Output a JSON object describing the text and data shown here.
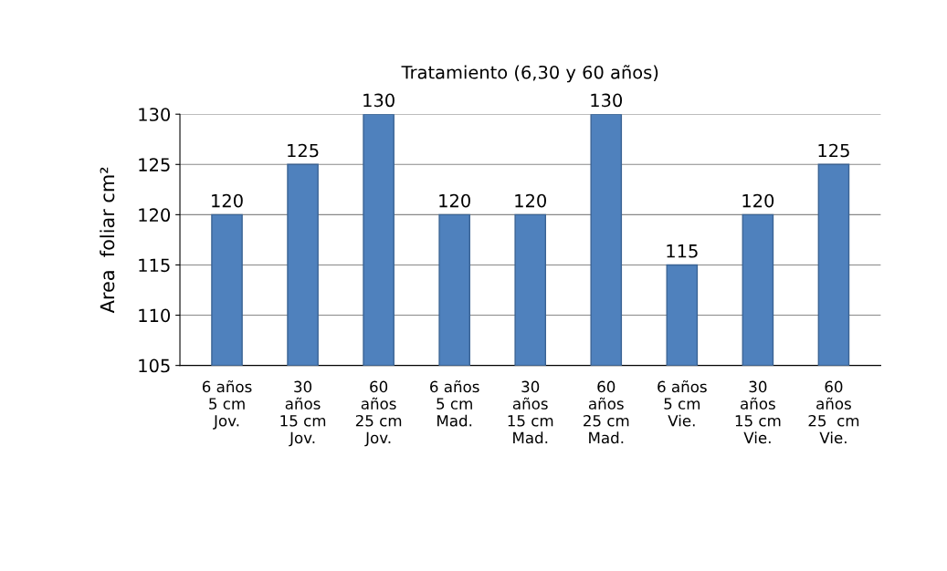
{
  "chart_data": {
    "type": "bar",
    "title": "Tratamiento (6,30 y 60 años)",
    "ylabel": "Area  foliar cm²",
    "categories": [
      "6 años\n5 cm\nJov.",
      "30\naños\n15 cm\nJov.",
      "60\naños\n25 cm\nJov.",
      "6 años\n5 cm\nMad.",
      "30\naños\n15 cm\nMad.",
      "60\naños\n25 cm\nMad.",
      "6 años\n5 cm\nVie.",
      "30\naños\n15 cm\nVie.",
      "60\naños\n25  cm\nVie."
    ],
    "values": [
      120,
      125,
      130,
      120,
      120,
      130,
      115,
      120,
      125
    ],
    "color": "#4f81bd",
    "ylim": [
      105,
      130
    ],
    "yticks": [
      105,
      110,
      115,
      120,
      125,
      130
    ],
    "grid": "y",
    "data_labels": true
  }
}
